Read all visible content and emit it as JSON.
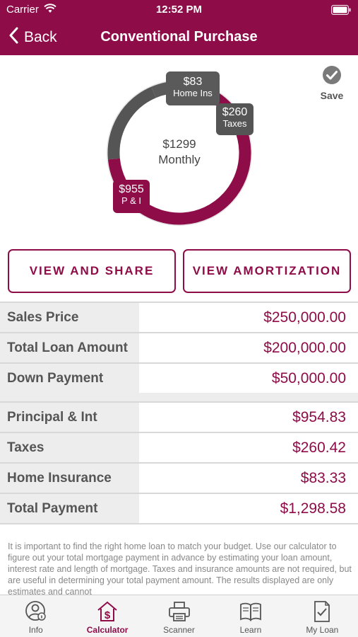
{
  "status_bar": {
    "carrier": "Carrier",
    "time": "12:52 PM"
  },
  "nav": {
    "back_label": "Back",
    "title": "Conventional Purchase"
  },
  "save_label": "Save",
  "chart": {
    "center_amount": "$1299",
    "center_label": "Monthly",
    "segments": [
      {
        "amount": "$955",
        "label": "P & I",
        "value": 954.83,
        "color": "#8e0c48"
      },
      {
        "amount": "$260",
        "label": "Taxes",
        "value": 260.42,
        "color": "#555555"
      },
      {
        "amount": "$83",
        "label": "Home Ins",
        "value": 83.33,
        "color": "#5a5a5a"
      }
    ]
  },
  "buttons": {
    "view_share": "VIEW AND SHARE",
    "view_amortization": "VIEW AMORTIZATION"
  },
  "loan_table": [
    {
      "label": "Sales Price",
      "value": "$250,000.00"
    },
    {
      "label": "Total Loan Amount",
      "value": "$200,000.00"
    },
    {
      "label": "Down Payment",
      "value": "$50,000.00"
    }
  ],
  "payment_table": [
    {
      "label": "Principal & Int",
      "value": "$954.83"
    },
    {
      "label": "Taxes",
      "value": "$260.42"
    },
    {
      "label": "Home Insurance",
      "value": "$83.33"
    },
    {
      "label": "Total Payment",
      "value": "$1,298.58"
    }
  ],
  "disclaimer": "It is important to find the right home loan to match your budget. Use our calculator to figure out your total mortgage payment in advance by estimating your loan amount, interest rate and length of mortgage. Taxes and insurance amounts are not required, but are useful in determining your total payment amount.  The results displayed are only estimates and cannot",
  "tabs": [
    {
      "label": "Info",
      "icon": "info-person-icon"
    },
    {
      "label": "Calculator",
      "icon": "dollar-house-icon",
      "active": true
    },
    {
      "label": "Scanner",
      "icon": "printer-icon"
    },
    {
      "label": "Learn",
      "icon": "open-book-icon"
    },
    {
      "label": "My Loan",
      "icon": "document-check-icon"
    }
  ],
  "colors": {
    "brand": "#8e0c48",
    "label_bg": "#ededed",
    "text_gray": "#555555"
  }
}
